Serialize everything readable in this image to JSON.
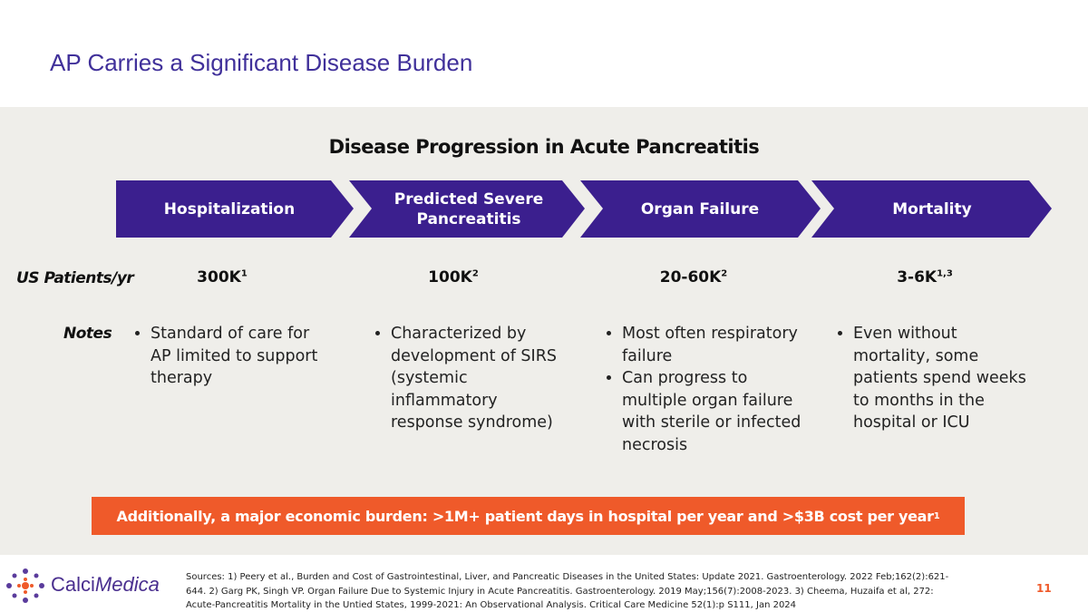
{
  "title": "AP Carries a Significant Disease Burden",
  "panel": {
    "heading": "Disease Progression in Acute Pancreatitis",
    "stages": [
      "Hospitalization",
      "Predicted Severe Pancreatitis",
      "Organ Failure",
      "Mortality"
    ],
    "row_labels": {
      "patients": "US Patients/yr",
      "notes": "Notes"
    },
    "patients": [
      {
        "value": "300K",
        "sup": "1"
      },
      {
        "value": "100K",
        "sup": "2"
      },
      {
        "value": "20-60K",
        "sup": "2"
      },
      {
        "value": "3-6K",
        "sup": "1,3"
      }
    ],
    "notes": [
      [
        "Standard of care for AP limited to support therapy"
      ],
      [
        "Characterized by development of SIRS (systemic inflammatory response syndrome)"
      ],
      [
        "Most often respiratory failure",
        "Can progress to multiple organ failure with sterile or infected necrosis"
      ],
      [
        "Even without mortality, some patients spend weeks to months in the hospital or ICU"
      ]
    ]
  },
  "banner": {
    "text": "Additionally, a major economic burden: >1M+ patient days in hospital per year and >$3B cost per year",
    "sup": "1"
  },
  "footer": {
    "logo": [
      "Calci",
      "Medica"
    ],
    "sources": "Sources: 1) Peery et al., Burden and Cost of Gastrointestinal, Liver, and Pancreatic Diseases in the United States: Update 2021. Gastroenterology. 2022 Feb;162(2):621-644. 2) Garg PK, Singh VP. Organ Failure Due to Systemic Injury in Acute Pancreatitis. Gastroenterology. 2019 May;156(7):2008-2023. 3) Cheema, Huzaifa et al, 272: Acute-Pancreatitis Mortality in the Untied States, 1999-2021: An Observational Analysis. Critical Care Medicine 52(1):p S111, Jan 2024",
    "page": "11"
  }
}
